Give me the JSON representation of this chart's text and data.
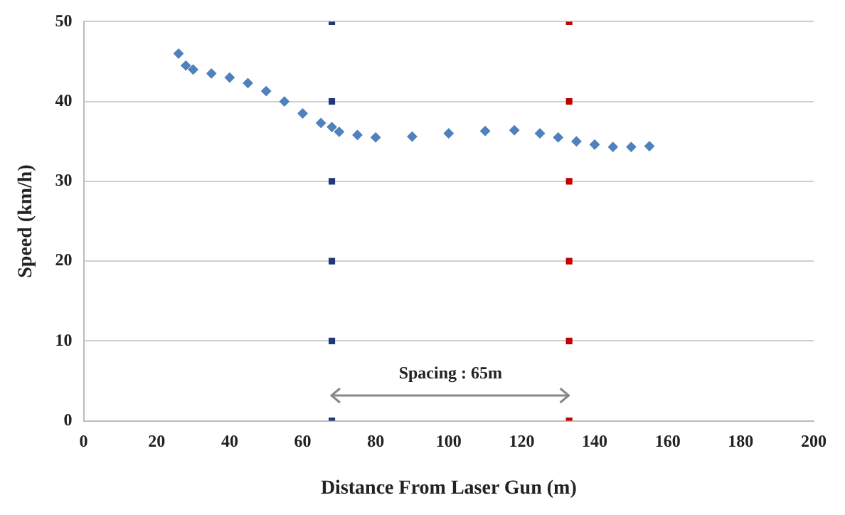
{
  "chart_data": {
    "type": "scatter",
    "xlabel": "Distance From Laser Gun (m)",
    "ylabel": "Speed (km/h)",
    "xlim": [
      0,
      200
    ],
    "xticks": [
      0,
      20,
      40,
      60,
      80,
      100,
      120,
      140,
      160,
      180,
      200
    ],
    "ylim": [
      0,
      50
    ],
    "yticks": [
      0,
      10,
      20,
      30,
      40,
      50
    ],
    "grid": "y",
    "legend": false,
    "series": [
      {
        "color": "#4f81bd",
        "marker": "diamond",
        "x": [
          26,
          28,
          30,
          35,
          40,
          45,
          50,
          55,
          60,
          65,
          68,
          70,
          75,
          80,
          90,
          100,
          110,
          118,
          125,
          130,
          135,
          140,
          145,
          150,
          155
        ],
        "values": [
          46,
          44.5,
          44,
          43.5,
          43,
          42.3,
          41.3,
          40,
          38.5,
          37.3,
          36.8,
          36.2,
          35.8,
          35.5,
          35.6,
          36,
          36.3,
          36.4,
          36,
          35.5,
          35,
          34.6,
          34.3,
          34.3,
          34.4
        ]
      },
      {
        "color": "#1f3a7a",
        "marker": "square",
        "x": [
          68,
          68,
          68,
          68,
          68,
          68
        ],
        "values": [
          0,
          10,
          20,
          30,
          40,
          50
        ]
      },
      {
        "color": "#c00000",
        "marker": "square",
        "x": [
          133,
          133,
          133,
          133,
          133,
          133
        ],
        "values": [
          0,
          10,
          20,
          30,
          40,
          50
        ]
      }
    ],
    "annotations": [
      "Spacing : 65m"
    ]
  }
}
